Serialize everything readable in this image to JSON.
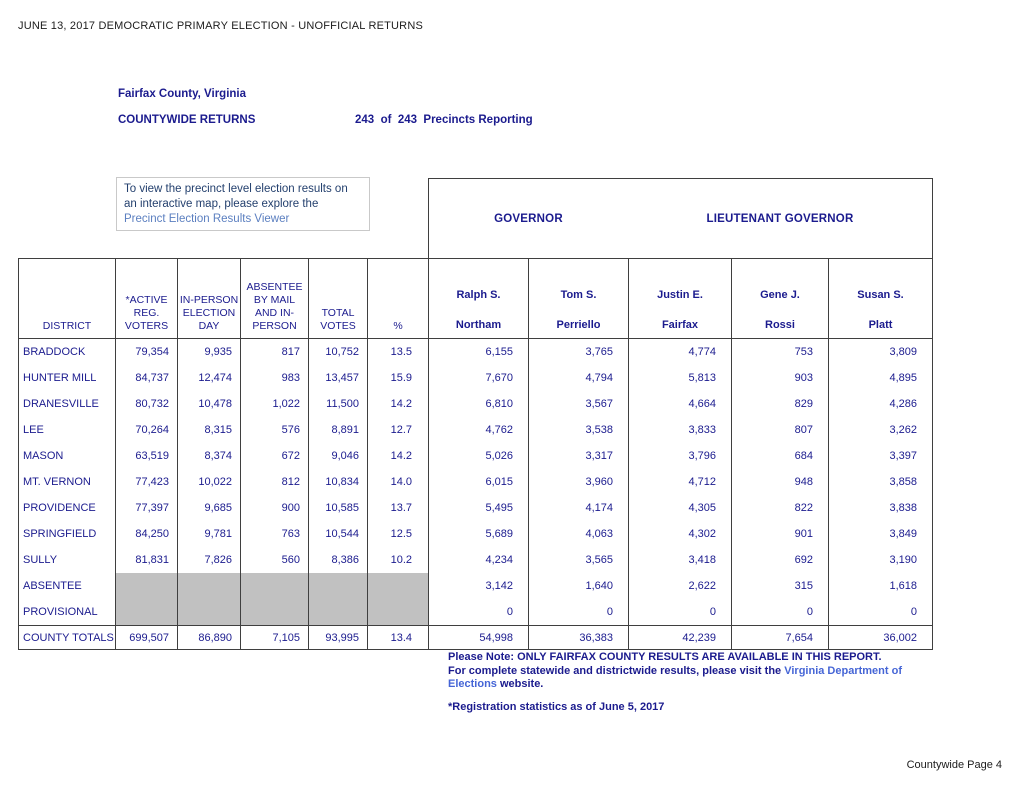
{
  "page": {
    "doc_title": "JUNE 13, 2017 DEMOCRATIC PRIMARY ELECTION - UNOFFICIAL RETURNS",
    "county": "Fairfax County, Virginia",
    "returns_label": "COUNTYWIDE RETURNS",
    "precincts_reporting": "243  of  243  Precincts Reporting",
    "page_footer": "Countywide Page 4"
  },
  "info_box": {
    "line1": "To view the precinct level election results on",
    "line2": "an interactive map, please explore the",
    "link_label": "Precinct Election Results Viewer"
  },
  "notes": {
    "note1": "Please Note: ONLY FAIRFAX COUNTY RESULTS ARE AVAILABLE IN THIS REPORT.",
    "note2_prefix": "For complete statewide and districtwide results, please visit the ",
    "note2_link": "Virginia  Department of",
    "note3_link": "Elections",
    "note3_suffix": " website.",
    "registration_note": "*Registration statistics as of June 5, 2017"
  },
  "colors": {
    "navy_text": "#1b1b8e",
    "black_text": "#1c1c1c",
    "grid_border": "#3f3f3f",
    "gray_fill": "#c1c1c1",
    "info_link_blue": "#5b7fc0",
    "note_link_blue": "#4565d6",
    "info_text_blue": "#24406e"
  },
  "table": {
    "office_groups": [
      "GOVERNOR",
      "LIEUTENANT GOVERNOR"
    ],
    "stat_columns": [
      "DISTRICT",
      "*ACTIVE\nREG.\nVOTERS",
      "IN-PERSON\nELECTION\nDAY",
      "ABSENTEE\nBY MAIL\nAND IN-\nPERSON",
      "TOTAL\nVOTES",
      "%"
    ],
    "candidates": [
      "Ralph S.\n\nNortham",
      "Tom S.\n\nPerriello",
      "Justin E.\n\nFairfax",
      "Gene J.\n\nRossi",
      "Susan S.\n\nPlatt"
    ],
    "rows": [
      {
        "district": "BRADDOCK",
        "gray": false,
        "values": [
          "79,354",
          "9,935",
          "817",
          "10,752",
          "13.5",
          "6,155",
          "3,765",
          "4,774",
          "753",
          "3,809"
        ]
      },
      {
        "district": "HUNTER MILL",
        "gray": false,
        "values": [
          "84,737",
          "12,474",
          "983",
          "13,457",
          "15.9",
          "7,670",
          "4,794",
          "5,813",
          "903",
          "4,895"
        ]
      },
      {
        "district": "DRANESVILLE",
        "gray": false,
        "values": [
          "80,732",
          "10,478",
          "1,022",
          "11,500",
          "14.2",
          "6,810",
          "3,567",
          "4,664",
          "829",
          "4,286"
        ]
      },
      {
        "district": "LEE",
        "gray": false,
        "values": [
          "70,264",
          "8,315",
          "576",
          "8,891",
          "12.7",
          "4,762",
          "3,538",
          "3,833",
          "807",
          "3,262"
        ]
      },
      {
        "district": "MASON",
        "gray": false,
        "values": [
          "63,519",
          "8,374",
          "672",
          "9,046",
          "14.2",
          "5,026",
          "3,317",
          "3,796",
          "684",
          "3,397"
        ]
      },
      {
        "district": "MT. VERNON",
        "gray": false,
        "values": [
          "77,423",
          "10,022",
          "812",
          "10,834",
          "14.0",
          "6,015",
          "3,960",
          "4,712",
          "948",
          "3,858"
        ]
      },
      {
        "district": "PROVIDENCE",
        "gray": false,
        "values": [
          "77,397",
          "9,685",
          "900",
          "10,585",
          "13.7",
          "5,495",
          "4,174",
          "4,305",
          "822",
          "3,838"
        ]
      },
      {
        "district": "SPRINGFIELD",
        "gray": false,
        "values": [
          "84,250",
          "9,781",
          "763",
          "10,544",
          "12.5",
          "5,689",
          "4,063",
          "4,302",
          "901",
          "3,849"
        ]
      },
      {
        "district": "SULLY",
        "gray": false,
        "values": [
          "81,831",
          "7,826",
          "560",
          "8,386",
          "10.2",
          "4,234",
          "3,565",
          "3,418",
          "692",
          "3,190"
        ]
      },
      {
        "district": "ABSENTEE",
        "gray": true,
        "values": [
          "",
          "",
          "",
          "",
          "",
          "3,142",
          "1,640",
          "2,622",
          "315",
          "1,618"
        ]
      },
      {
        "district": "PROVISIONAL",
        "gray": true,
        "values": [
          "",
          "",
          "",
          "",
          "",
          "0",
          "0",
          "0",
          "0",
          "0"
        ]
      }
    ],
    "totals_row": {
      "district": "COUNTY TOTALS",
      "values": [
        "699,507",
        "86,890",
        "7,105",
        "93,995",
        "13.4",
        "54,998",
        "36,383",
        "42,239",
        "7,654",
        "36,002"
      ]
    }
  }
}
